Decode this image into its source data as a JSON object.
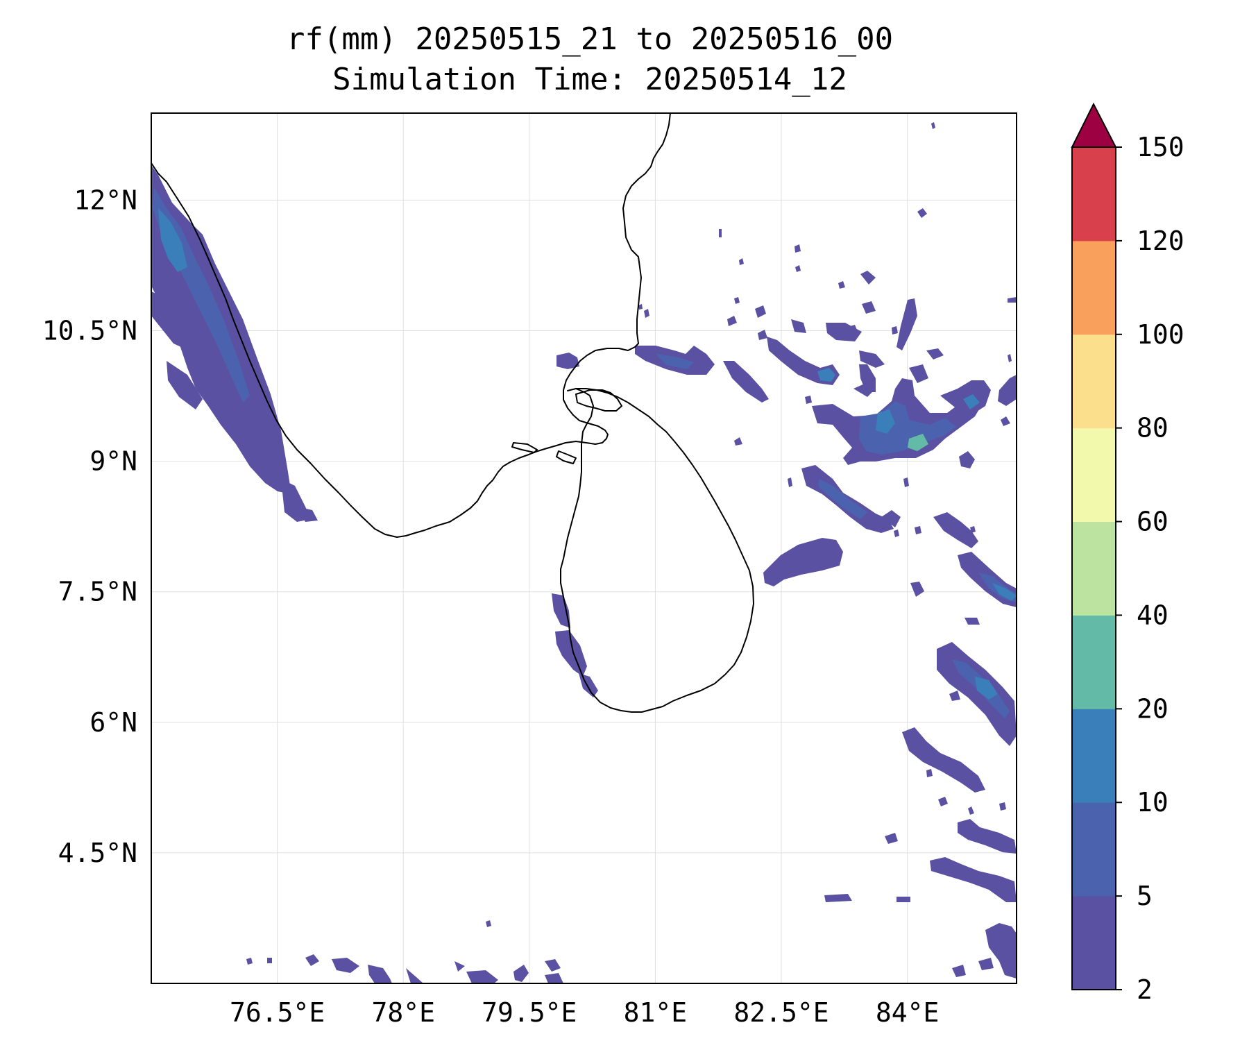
{
  "title": "rf(mm) 20250515_21 to 20250516_00",
  "subtitle": "Simulation Time: 20250514_12",
  "map": {
    "lon_range": [
      75.0,
      85.3
    ],
    "lat_range": [
      3.0,
      13.0
    ],
    "xticks": [
      {
        "value": 76.5,
        "label": "76.5°E"
      },
      {
        "value": 78.0,
        "label": "78°E"
      },
      {
        "value": 79.5,
        "label": "79.5°E"
      },
      {
        "value": 81.0,
        "label": "81°E"
      },
      {
        "value": 82.5,
        "label": "82.5°E"
      },
      {
        "value": 84.0,
        "label": "84°E"
      }
    ],
    "yticks": [
      {
        "value": 12.0,
        "label": "12°N"
      },
      {
        "value": 10.5,
        "label": "10.5°N"
      },
      {
        "value": 9.0,
        "label": "9°N"
      },
      {
        "value": 7.5,
        "label": "7.5°N"
      },
      {
        "value": 6.0,
        "label": "6°N"
      },
      {
        "value": 4.5,
        "label": "4.5°N"
      }
    ],
    "grid": true
  },
  "colorbar": {
    "levels": [
      {
        "label": "2"
      },
      {
        "label": "5"
      },
      {
        "label": "10"
      },
      {
        "label": "20"
      },
      {
        "label": "40"
      },
      {
        "label": "60"
      },
      {
        "label": "80"
      },
      {
        "label": "100"
      },
      {
        "label": "120"
      },
      {
        "label": "150"
      }
    ],
    "colors": [
      "#5b51a3",
      "#4b63af",
      "#3a7fba",
      "#63bba7",
      "#bde3a0",
      "#f2f8ac",
      "#fbdf8d",
      "#f9a15c",
      "#d8404c"
    ],
    "extend_color": "#9e0142"
  },
  "rain_colors": {
    "light": "#5b51a3",
    "medium": "#4b63af",
    "heavy": "#3a7fba",
    "peak": "#63bba7"
  }
}
